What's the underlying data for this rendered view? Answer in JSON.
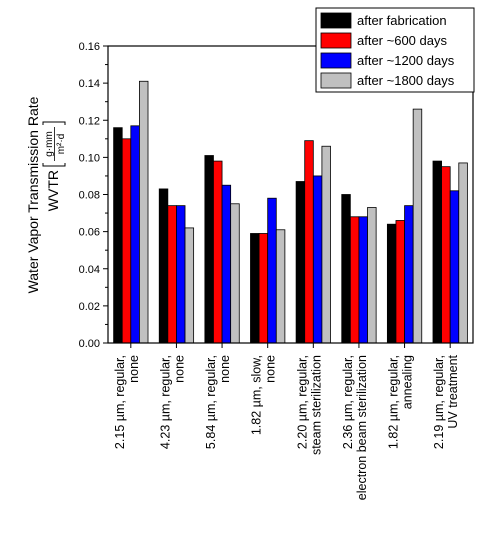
{
  "chart_data": {
    "type": "bar",
    "ylabel": "Water Vapor Transmission Rate",
    "ylabel2": "WVTR",
    "yunit_num": "g·mm",
    "yunit_den": "m²·d",
    "ylim": [
      0,
      0.16
    ],
    "yticks": [
      "0.00",
      "0.02",
      "0.04",
      "0.06",
      "0.08",
      "0.10",
      "0.12",
      "0.14",
      "0.16"
    ],
    "legend_position": "top-right",
    "categories": [
      [
        "2.15 µm, regular,",
        "none"
      ],
      [
        "4.23 µm, regular,",
        "none"
      ],
      [
        "5.84 µm, regular,",
        "none"
      ],
      [
        "1.82 µm, slow,",
        "none"
      ],
      [
        "2.20 µm, regular,",
        "steam sterilization"
      ],
      [
        "2.36 µm, regular,",
        "electron beam sterilization"
      ],
      [
        "1.82 µm, regular,",
        "annealing"
      ],
      [
        "2.19 µm, regular,",
        "UV treatment"
      ]
    ],
    "series": [
      {
        "name": "after fabrication",
        "color": "#000000",
        "values": [
          0.116,
          0.083,
          0.101,
          0.059,
          0.087,
          0.08,
          0.064,
          0.098
        ]
      },
      {
        "name": "after ~600 days",
        "color": "#ff0000",
        "values": [
          0.11,
          0.074,
          0.098,
          0.059,
          0.109,
          0.068,
          0.066,
          0.095
        ]
      },
      {
        "name": "after ~1200 days",
        "color": "#0000ff",
        "values": [
          0.117,
          0.074,
          0.085,
          0.078,
          0.09,
          0.068,
          0.074,
          0.082
        ]
      },
      {
        "name": "after ~1800 days",
        "color": "#c0c0c0",
        "values": [
          0.141,
          0.062,
          0.075,
          0.061,
          0.106,
          0.073,
          0.126,
          0.097
        ]
      }
    ]
  }
}
